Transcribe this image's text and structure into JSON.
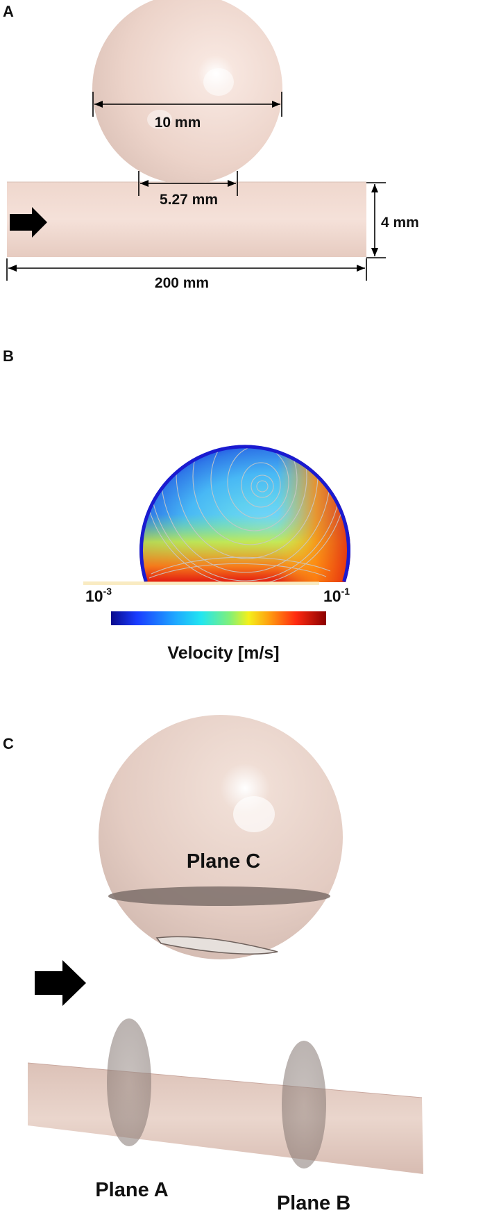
{
  "panels": {
    "a": {
      "letter": "A",
      "sphere_diameter": "10 mm",
      "neck_width": "5.27 mm",
      "vessel_diameter": "4 mm",
      "vessel_length": "200 mm"
    },
    "b": {
      "letter": "B",
      "colorbar_min": "10",
      "colorbar_min_exp": "-3",
      "colorbar_max": "10",
      "colorbar_max_exp": "-1",
      "colorbar_title": "Velocity [m/s]"
    },
    "c": {
      "letter": "C",
      "plane_a": "Plane A",
      "plane_b": "Plane B",
      "plane_c": "Plane C"
    }
  },
  "colors": {
    "tissue": "#f2d9cf",
    "tissue_shadow": "#d9bfb5",
    "jet_low": "#1a1aa8",
    "jet_high": "#8b0000"
  }
}
